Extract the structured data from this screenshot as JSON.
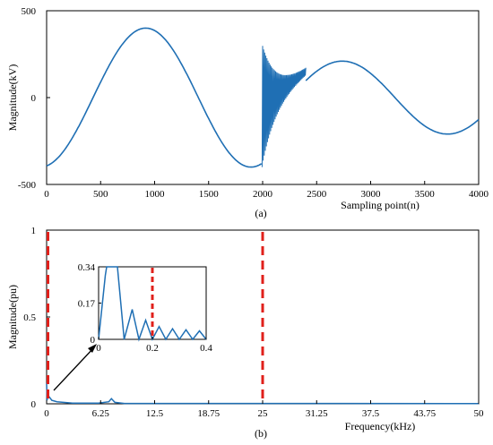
{
  "chart_data": [
    {
      "type": "line",
      "panel_label": "(a)",
      "xlabel": "Sampling point(n)",
      "ylabel": "Magnitude(kV)",
      "xlim": [
        0,
        4000
      ],
      "ylim": [
        -500,
        500
      ],
      "x_ticks": [
        "0",
        "500",
        "1000",
        "1500",
        "2000",
        "2500",
        "3000",
        "3500",
        "4000"
      ],
      "y_ticks": [
        "500",
        "0",
        "-500"
      ],
      "grid": false,
      "color": "#1f6fb4",
      "series": [
        {
          "description_points": [
            [
              0,
              -390
            ],
            [
              900,
              405
            ],
            [
              1960,
              -410
            ],
            [
              1990,
              -395
            ],
            [
              2000,
              260
            ],
            [
              2000,
              -430
            ],
            [
              2050,
              120
            ],
            [
              2150,
              100
            ],
            [
              2300,
              170
            ],
            [
              2650,
              210
            ],
            [
              3000,
              80
            ],
            [
              3620,
              -210
            ],
            [
              4000,
              -85
            ]
          ]
        }
      ],
      "transient": {
        "start": 2000,
        "end": 2400,
        "upper_start": 260,
        "lower_start": -430
      }
    },
    {
      "type": "line",
      "panel_label": "(b)",
      "xlabel": "Frequency(kHz)",
      "ylabel": "Magnitude(pu)",
      "xlim": [
        0,
        50
      ],
      "ylim": [
        0,
        1
      ],
      "x_ticks": [
        "0",
        "6.25",
        "12.5",
        "18.75",
        "25",
        "31.25",
        "37.5",
        "43.75",
        "50"
      ],
      "y_ticks": [
        "1",
        "0.5",
        "0"
      ],
      "grid": false,
      "color": "#1f6fb4",
      "marker_color": "#e0201b",
      "dashed_lines_x": [
        0,
        25
      ],
      "spectrum_bumps": [
        [
          0.0,
          0.12
        ],
        [
          0.3,
          0.04
        ],
        [
          7.5,
          0.03
        ]
      ],
      "inset": {
        "xlim": [
          0,
          0.4
        ],
        "ylim": [
          0,
          0.34
        ],
        "x_ticks": [
          "0",
          "0.2",
          "0.4"
        ],
        "y_ticks": [
          "0.34",
          "0.17",
          "0"
        ],
        "dashed_line_x": 0.2,
        "points": [
          [
            0,
            0
          ],
          [
            0.025,
            0.3
          ],
          [
            0.03,
            0.34
          ],
          [
            0.07,
            0.34
          ],
          [
            0.095,
            0
          ],
          [
            0.125,
            0.14
          ],
          [
            0.15,
            0
          ],
          [
            0.175,
            0.09
          ],
          [
            0.2,
            0
          ],
          [
            0.225,
            0.06
          ],
          [
            0.25,
            0
          ],
          [
            0.275,
            0.05
          ],
          [
            0.3,
            0
          ],
          [
            0.325,
            0.045
          ],
          [
            0.35,
            0
          ],
          [
            0.375,
            0.04
          ],
          [
            0.4,
            0
          ]
        ]
      }
    }
  ]
}
